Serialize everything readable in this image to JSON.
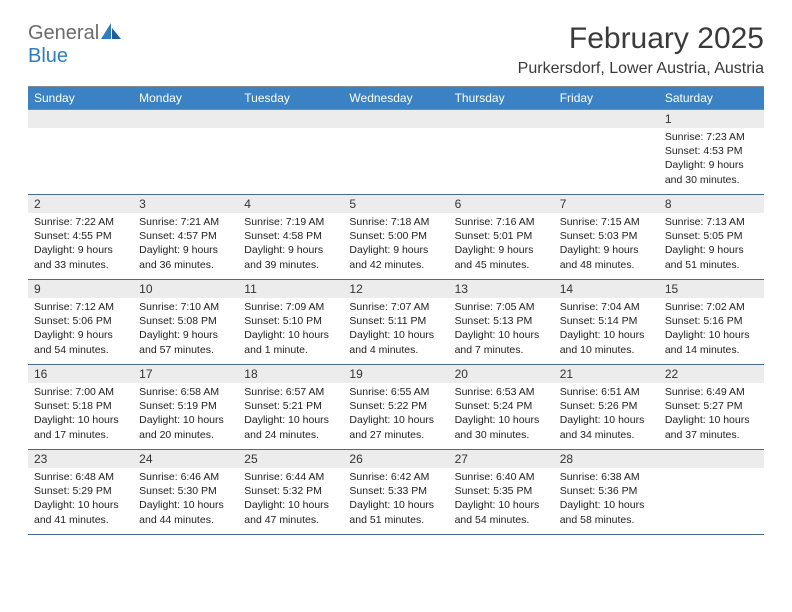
{
  "logo": {
    "word1": "General",
    "word2": "Blue",
    "word1_color": "#6b6b6b",
    "word2_color": "#2d7dc0"
  },
  "title": "February 2025",
  "location": "Purkersdorf, Lower Austria, Austria",
  "colors": {
    "header_bg": "#3a82c4",
    "header_text": "#ffffff",
    "daynum_bg": "#ececec",
    "row_border": "#4a6a8a",
    "background": "#ffffff",
    "text": "#222222"
  },
  "fonts": {
    "title_size": 30,
    "location_size": 16,
    "dayheader_size": 12,
    "daynum_size": 12,
    "body_size": 10.5
  },
  "day_headers": [
    "Sunday",
    "Monday",
    "Tuesday",
    "Wednesday",
    "Thursday",
    "Friday",
    "Saturday"
  ],
  "weeks": [
    [
      null,
      null,
      null,
      null,
      null,
      null,
      {
        "n": "1",
        "sr": "Sunrise: 7:23 AM",
        "ss": "Sunset: 4:53 PM",
        "dl1": "Daylight: 9 hours",
        "dl2": "and 30 minutes."
      }
    ],
    [
      {
        "n": "2",
        "sr": "Sunrise: 7:22 AM",
        "ss": "Sunset: 4:55 PM",
        "dl1": "Daylight: 9 hours",
        "dl2": "and 33 minutes."
      },
      {
        "n": "3",
        "sr": "Sunrise: 7:21 AM",
        "ss": "Sunset: 4:57 PM",
        "dl1": "Daylight: 9 hours",
        "dl2": "and 36 minutes."
      },
      {
        "n": "4",
        "sr": "Sunrise: 7:19 AM",
        "ss": "Sunset: 4:58 PM",
        "dl1": "Daylight: 9 hours",
        "dl2": "and 39 minutes."
      },
      {
        "n": "5",
        "sr": "Sunrise: 7:18 AM",
        "ss": "Sunset: 5:00 PM",
        "dl1": "Daylight: 9 hours",
        "dl2": "and 42 minutes."
      },
      {
        "n": "6",
        "sr": "Sunrise: 7:16 AM",
        "ss": "Sunset: 5:01 PM",
        "dl1": "Daylight: 9 hours",
        "dl2": "and 45 minutes."
      },
      {
        "n": "7",
        "sr": "Sunrise: 7:15 AM",
        "ss": "Sunset: 5:03 PM",
        "dl1": "Daylight: 9 hours",
        "dl2": "and 48 minutes."
      },
      {
        "n": "8",
        "sr": "Sunrise: 7:13 AM",
        "ss": "Sunset: 5:05 PM",
        "dl1": "Daylight: 9 hours",
        "dl2": "and 51 minutes."
      }
    ],
    [
      {
        "n": "9",
        "sr": "Sunrise: 7:12 AM",
        "ss": "Sunset: 5:06 PM",
        "dl1": "Daylight: 9 hours",
        "dl2": "and 54 minutes."
      },
      {
        "n": "10",
        "sr": "Sunrise: 7:10 AM",
        "ss": "Sunset: 5:08 PM",
        "dl1": "Daylight: 9 hours",
        "dl2": "and 57 minutes."
      },
      {
        "n": "11",
        "sr": "Sunrise: 7:09 AM",
        "ss": "Sunset: 5:10 PM",
        "dl1": "Daylight: 10 hours",
        "dl2": "and 1 minute."
      },
      {
        "n": "12",
        "sr": "Sunrise: 7:07 AM",
        "ss": "Sunset: 5:11 PM",
        "dl1": "Daylight: 10 hours",
        "dl2": "and 4 minutes."
      },
      {
        "n": "13",
        "sr": "Sunrise: 7:05 AM",
        "ss": "Sunset: 5:13 PM",
        "dl1": "Daylight: 10 hours",
        "dl2": "and 7 minutes."
      },
      {
        "n": "14",
        "sr": "Sunrise: 7:04 AM",
        "ss": "Sunset: 5:14 PM",
        "dl1": "Daylight: 10 hours",
        "dl2": "and 10 minutes."
      },
      {
        "n": "15",
        "sr": "Sunrise: 7:02 AM",
        "ss": "Sunset: 5:16 PM",
        "dl1": "Daylight: 10 hours",
        "dl2": "and 14 minutes."
      }
    ],
    [
      {
        "n": "16",
        "sr": "Sunrise: 7:00 AM",
        "ss": "Sunset: 5:18 PM",
        "dl1": "Daylight: 10 hours",
        "dl2": "and 17 minutes."
      },
      {
        "n": "17",
        "sr": "Sunrise: 6:58 AM",
        "ss": "Sunset: 5:19 PM",
        "dl1": "Daylight: 10 hours",
        "dl2": "and 20 minutes."
      },
      {
        "n": "18",
        "sr": "Sunrise: 6:57 AM",
        "ss": "Sunset: 5:21 PM",
        "dl1": "Daylight: 10 hours",
        "dl2": "and 24 minutes."
      },
      {
        "n": "19",
        "sr": "Sunrise: 6:55 AM",
        "ss": "Sunset: 5:22 PM",
        "dl1": "Daylight: 10 hours",
        "dl2": "and 27 minutes."
      },
      {
        "n": "20",
        "sr": "Sunrise: 6:53 AM",
        "ss": "Sunset: 5:24 PM",
        "dl1": "Daylight: 10 hours",
        "dl2": "and 30 minutes."
      },
      {
        "n": "21",
        "sr": "Sunrise: 6:51 AM",
        "ss": "Sunset: 5:26 PM",
        "dl1": "Daylight: 10 hours",
        "dl2": "and 34 minutes."
      },
      {
        "n": "22",
        "sr": "Sunrise: 6:49 AM",
        "ss": "Sunset: 5:27 PM",
        "dl1": "Daylight: 10 hours",
        "dl2": "and 37 minutes."
      }
    ],
    [
      {
        "n": "23",
        "sr": "Sunrise: 6:48 AM",
        "ss": "Sunset: 5:29 PM",
        "dl1": "Daylight: 10 hours",
        "dl2": "and 41 minutes."
      },
      {
        "n": "24",
        "sr": "Sunrise: 6:46 AM",
        "ss": "Sunset: 5:30 PM",
        "dl1": "Daylight: 10 hours",
        "dl2": "and 44 minutes."
      },
      {
        "n": "25",
        "sr": "Sunrise: 6:44 AM",
        "ss": "Sunset: 5:32 PM",
        "dl1": "Daylight: 10 hours",
        "dl2": "and 47 minutes."
      },
      {
        "n": "26",
        "sr": "Sunrise: 6:42 AM",
        "ss": "Sunset: 5:33 PM",
        "dl1": "Daylight: 10 hours",
        "dl2": "and 51 minutes."
      },
      {
        "n": "27",
        "sr": "Sunrise: 6:40 AM",
        "ss": "Sunset: 5:35 PM",
        "dl1": "Daylight: 10 hours",
        "dl2": "and 54 minutes."
      },
      {
        "n": "28",
        "sr": "Sunrise: 6:38 AM",
        "ss": "Sunset: 5:36 PM",
        "dl1": "Daylight: 10 hours",
        "dl2": "and 58 minutes."
      },
      null
    ]
  ]
}
